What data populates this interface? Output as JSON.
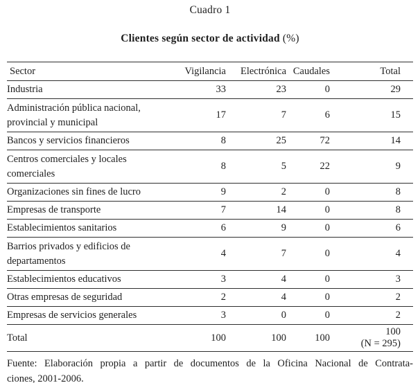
{
  "caption": {
    "number": "Cuadro 1",
    "title": "Clientes según sector de actividad",
    "title_suffix": " (%)"
  },
  "table": {
    "columns": {
      "sector": "Sector",
      "vigilancia": "Vigilancia",
      "electronica": "Electrónica",
      "caudales": "Caudales",
      "total": "Total"
    },
    "rows": [
      {
        "sector": "Industria",
        "vigilancia": "33",
        "electronica": "23",
        "caudales": "0",
        "total": "29"
      },
      {
        "sector": "Administración pública nacional, provincial y municipal",
        "vigilancia": "17",
        "electronica": "7",
        "caudales": "6",
        "total": "15"
      },
      {
        "sector": "Bancos y servicios financieros",
        "vigilancia": "8",
        "electronica": "25",
        "caudales": "72",
        "total": "14"
      },
      {
        "sector": "Centros comerciales y locales comerciales",
        "vigilancia": "8",
        "electronica": "5",
        "caudales": "22",
        "total": "9"
      },
      {
        "sector": "Organizaciones sin fines de lucro",
        "vigilancia": "9",
        "electronica": "2",
        "caudales": "0",
        "total": "8"
      },
      {
        "sector": "Empresas de transporte",
        "vigilancia": "7",
        "electronica": "14",
        "caudales": "0",
        "total": "8"
      },
      {
        "sector": "Establecimientos sanitarios",
        "vigilancia": "6",
        "electronica": "9",
        "caudales": "0",
        "total": "6"
      },
      {
        "sector": "Barrios privados y edificios de departamentos",
        "vigilancia": "4",
        "electronica": "7",
        "caudales": "0",
        "total": "4"
      },
      {
        "sector": "Establecimientos educativos",
        "vigilancia": "3",
        "electronica": "4",
        "caudales": "0",
        "total": "3"
      },
      {
        "sector": "Otras empresas de seguridad",
        "vigilancia": "2",
        "electronica": "4",
        "caudales": "0",
        "total": "2"
      },
      {
        "sector": "Empresas de servicios generales",
        "vigilancia": "3",
        "electronica": "0",
        "caudales": "0",
        "total": "2"
      },
      {
        "sector": "Total",
        "vigilancia": "100",
        "electronica": "100",
        "caudales": "100",
        "total": "100",
        "total_note": "(N = 295)"
      }
    ]
  },
  "footer": {
    "line1": "Fuente: Elaboración propia a partir de documentos de la Oficina Nacional de Contrata-",
    "line2": "ciones, 2001-2006."
  }
}
